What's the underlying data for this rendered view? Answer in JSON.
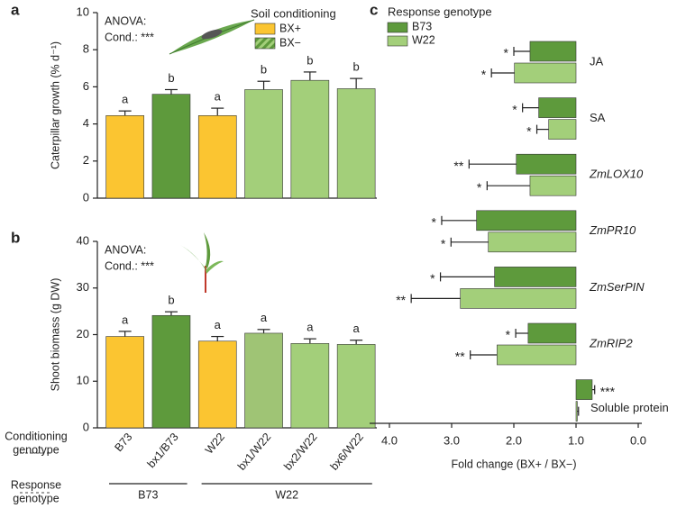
{
  "chart_data": [
    {
      "type": "bar",
      "panel": "a",
      "ylabel": "Caterpillar growth (% d⁻¹)",
      "values": [
        4.45,
        5.6,
        4.45,
        5.85,
        6.35,
        5.9
      ],
      "errors": [
        0.25,
        0.25,
        0.4,
        0.45,
        0.45,
        0.55
      ],
      "letters": [
        "a",
        "b",
        "a",
        "b",
        "b",
        "b"
      ],
      "colors": [
        "#fbc531",
        "#5e9a3c",
        "#fbc531",
        "#a3cf7a",
        "#a3cf7a",
        "#a3cf7a"
      ],
      "ylim": [
        0,
        10
      ],
      "yticks": [
        0,
        2,
        4,
        6,
        8,
        10
      ],
      "annotations": [
        "ANOVA:",
        "Cond.: ***"
      ],
      "legend": {
        "title": "Soil conditioning",
        "entries": [
          {
            "name": "BX+",
            "color": "#fbc531"
          },
          {
            "name": "BX−",
            "color": "#5e9a3c",
            "hatch_color": "#a3cf7a"
          }
        ]
      }
    },
    {
      "type": "bar",
      "panel": "b",
      "ylabel": "Shoot biomass (g DW)",
      "categories": [
        "B73",
        "bx1/B73",
        "W22",
        "bx1/W22",
        "bx2/W22",
        "bx6/W22"
      ],
      "response_genotype": [
        "B73",
        "B73",
        "W22",
        "W22",
        "W22",
        "W22"
      ],
      "row_labels": [
        [
          "Conditioning",
          "genotype"
        ],
        [
          "Response",
          "genotype"
        ]
      ],
      "values": [
        19.6,
        24.1,
        18.6,
        20.3,
        18.1,
        17.9
      ],
      "errors": [
        1.1,
        0.8,
        1.0,
        0.8,
        1.0,
        0.9
      ],
      "letters": [
        "a",
        "b",
        "a",
        "a",
        "a",
        "a"
      ],
      "colors": [
        "#fbc531",
        "#5e9a3c",
        "#fbc531",
        "#9fc475",
        "#a3cf7a",
        "#a3cf7a"
      ],
      "ylim": [
        0,
        40
      ],
      "yticks": [
        0,
        10,
        20,
        30,
        40
      ],
      "annotations": [
        "ANOVA:",
        "Cond.: ***"
      ]
    },
    {
      "type": "hbar",
      "panel": "c",
      "xlabel": "Fold change (BX+ / BX−)",
      "legend_title": "Response genotype",
      "categories": [
        "JA",
        "SA",
        "ZmLOX10",
        "ZmPR10",
        "ZmSerPIN",
        "ZmRIP2",
        "Soluble protein"
      ],
      "base": 1.0,
      "series": [
        {
          "name": "B73",
          "color": "#5e9a3c",
          "values": [
            1.74,
            1.6,
            1.96,
            2.6,
            2.31,
            1.77,
            0.74
          ],
          "errors": [
            0.26,
            0.26,
            0.76,
            0.56,
            0.87,
            0.2,
            0.04
          ],
          "significance": [
            "*",
            "*",
            "**",
            "*",
            "*",
            "*",
            "***"
          ]
        },
        {
          "name": "W22",
          "color": "#a3cf7a",
          "values": [
            1.99,
            1.44,
            1.74,
            2.41,
            2.86,
            2.27,
            0.98
          ],
          "errors": [
            0.37,
            0.19,
            0.69,
            0.6,
            0.79,
            0.43,
            0.02
          ],
          "significance": [
            "*",
            "*",
            "*",
            "*",
            "**",
            "**",
            null
          ]
        }
      ],
      "xlim": [
        4.0,
        0.0
      ],
      "xticks": [
        {
          "value": 4,
          "label": "4.0"
        },
        {
          "value": 3,
          "label": "3.0"
        },
        {
          "value": 2,
          "label": "2.0"
        },
        {
          "value": 1,
          "label": "1.0"
        },
        {
          "value": 0,
          "label": "0.0"
        }
      ]
    }
  ]
}
